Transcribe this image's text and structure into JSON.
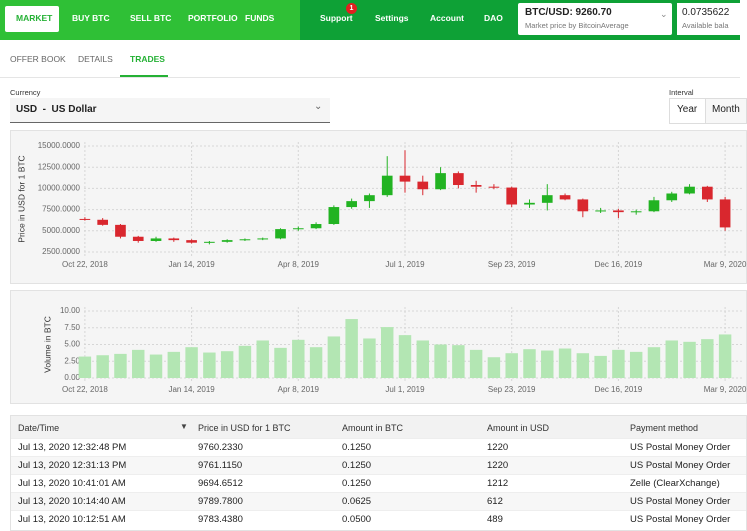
{
  "nav": {
    "items": [
      "MARKET",
      "BUY BTC",
      "SELL BTC",
      "PORTFOLIO",
      "FUNDS",
      "Support",
      "Settings",
      "Account",
      "DAO"
    ],
    "support_badge": "1",
    "price_ticker": "BTC/USD: 9260.70",
    "price_source": "Market price by BitcoinAverage",
    "balance": "0.0735622",
    "balance_label": "Available bala"
  },
  "tabs": [
    "OFFER BOOK",
    "DETAILS",
    "TRADES"
  ],
  "currency": {
    "label": "Currency",
    "value": "USD  -  US Dollar"
  },
  "interval": {
    "label": "Interval",
    "options": [
      "Year",
      "Month"
    ]
  },
  "chart_data": [
    {
      "type": "candlestick",
      "ylabel": "Price in USD for 1 BTC",
      "x": [
        "2018-10-22",
        "2018-11-05",
        "2018-11-19",
        "2018-12-03",
        "2018-12-17",
        "2018-12-31",
        "2019-01-14",
        "2019-01-28",
        "2019-02-11",
        "2019-02-25",
        "2019-03-11",
        "2019-03-25",
        "2019-04-08",
        "2019-04-22",
        "2019-05-06",
        "2019-05-20",
        "2019-06-03",
        "2019-06-17",
        "2019-07-01",
        "2019-07-15",
        "2019-07-29",
        "2019-08-12",
        "2019-08-26",
        "2019-09-09",
        "2019-09-23",
        "2019-10-07",
        "2019-10-21",
        "2019-11-04",
        "2019-11-18",
        "2019-12-02",
        "2019-12-16",
        "2019-12-30",
        "2020-01-13",
        "2020-01-27",
        "2020-02-10",
        "2020-02-24",
        "2020-03-09"
      ],
      "open": [
        6400,
        6300,
        5700,
        4300,
        3800,
        4100,
        3900,
        3600,
        3700,
        3900,
        4000,
        4100,
        5200,
        5300,
        5800,
        7800,
        8500,
        9200,
        11500,
        10800,
        9900,
        11800,
        10400,
        10200,
        10100,
        8100,
        8300,
        9200,
        8700,
        7300,
        7400,
        7200,
        7300,
        8600,
        9400,
        10200,
        8700
      ],
      "high": [
        6600,
        6500,
        5800,
        4400,
        4300,
        4200,
        4000,
        3800,
        4000,
        4100,
        4200,
        5300,
        5500,
        6000,
        8000,
        8800,
        9400,
        13800,
        14500,
        11500,
        12500,
        12000,
        10900,
        10500,
        10200,
        8700,
        10500,
        9400,
        8800,
        7700,
        7600,
        7500,
        9000,
        9600,
        10500,
        10300,
        9000
      ],
      "low": [
        6200,
        5600,
        4100,
        3600,
        3700,
        3700,
        3500,
        3400,
        3600,
        3800,
        3900,
        4000,
        5000,
        5200,
        5700,
        7600,
        7700,
        9000,
        9500,
        9200,
        9800,
        10000,
        9500,
        9900,
        7800,
        7700,
        7400,
        8600,
        6600,
        7100,
        6500,
        6900,
        7200,
        8400,
        9300,
        8400,
        5000
      ],
      "close": [
        6300,
        5700,
        4300,
        3800,
        4100,
        3900,
        3600,
        3700,
        3900,
        4000,
        4100,
        5200,
        5300,
        5800,
        7800,
        8500,
        9200,
        11500,
        10800,
        9900,
        11800,
        10400,
        10200,
        10100,
        8100,
        8300,
        9200,
        8700,
        7300,
        7400,
        7200,
        7300,
        8600,
        9400,
        10200,
        8700,
        5400
      ],
      "up_color": "#22b322",
      "down_color": "#d9272e",
      "xlim": [
        "2018-10-15",
        "2020-03-16"
      ],
      "xticks": [
        {
          "value": "2018-10-22",
          "label": "Oct 22, 2018"
        },
        {
          "value": "2019-01-14",
          "label": "Jan 14, 2019"
        },
        {
          "value": "2019-04-08",
          "label": "Apr 8, 2019"
        },
        {
          "value": "2019-07-01",
          "label": "Jul 1, 2019"
        },
        {
          "value": "2019-09-23",
          "label": "Sep 23, 2019"
        },
        {
          "value": "2019-12-16",
          "label": "Dec 16, 2019"
        },
        {
          "value": "2020-03-09",
          "label": "Mar 9, 2020"
        }
      ],
      "ylim": [
        2500,
        15000
      ],
      "yticks": [
        {
          "value": 2500,
          "label": "2500.0000"
        },
        {
          "value": 5000,
          "label": "5000.0000"
        },
        {
          "value": 7500,
          "label": "7500.0000"
        },
        {
          "value": 10000,
          "label": "10000.0000"
        },
        {
          "value": 12500,
          "label": "12500.0000"
        },
        {
          "value": 15000,
          "label": "15000.0000"
        }
      ],
      "grid": true
    },
    {
      "type": "bar",
      "ylabel": "Volume in BTC",
      "x": [
        "2018-10-22",
        "2018-11-05",
        "2018-11-19",
        "2018-12-03",
        "2018-12-17",
        "2018-12-31",
        "2019-01-14",
        "2019-01-28",
        "2019-02-11",
        "2019-02-25",
        "2019-03-11",
        "2019-03-25",
        "2019-04-08",
        "2019-04-22",
        "2019-05-06",
        "2019-05-20",
        "2019-06-03",
        "2019-06-17",
        "2019-07-01",
        "2019-07-15",
        "2019-07-29",
        "2019-08-12",
        "2019-08-26",
        "2019-09-09",
        "2019-09-23",
        "2019-10-07",
        "2019-10-21",
        "2019-11-04",
        "2019-11-18",
        "2019-12-02",
        "2019-12-16",
        "2019-12-30",
        "2020-01-13",
        "2020-01-27",
        "2020-02-10",
        "2020-02-24",
        "2020-03-09"
      ],
      "values": [
        3.2,
        3.4,
        3.6,
        4.2,
        3.5,
        3.9,
        4.6,
        3.8,
        4.0,
        4.8,
        5.6,
        4.5,
        5.7,
        4.6,
        6.2,
        8.8,
        5.9,
        7.6,
        6.4,
        5.6,
        5.0,
        4.9,
        4.2,
        3.1,
        3.7,
        4.3,
        4.1,
        4.4,
        3.7,
        3.3,
        4.2,
        3.9,
        4.6,
        5.6,
        5.4,
        5.8,
        6.5
      ],
      "color": "#b3e6b3",
      "xlim": [
        "2018-10-15",
        "2020-03-16"
      ],
      "xticks": [
        {
          "value": "2018-10-22",
          "label": "Oct 22, 2018"
        },
        {
          "value": "2019-01-14",
          "label": "Jan 14, 2019"
        },
        {
          "value": "2019-04-08",
          "label": "Apr 8, 2019"
        },
        {
          "value": "2019-07-01",
          "label": "Jul 1, 2019"
        },
        {
          "value": "2019-09-23",
          "label": "Sep 23, 2019"
        },
        {
          "value": "2019-12-16",
          "label": "Dec 16, 2019"
        },
        {
          "value": "2020-03-09",
          "label": "Mar 9, 2020"
        }
      ],
      "ylim": [
        0,
        10
      ],
      "yticks": [
        {
          "value": 0,
          "label": "0.00"
        },
        {
          "value": 2.5,
          "label": "2.50"
        },
        {
          "value": 5,
          "label": "5.00"
        },
        {
          "value": 7.5,
          "label": "7.50"
        },
        {
          "value": 10,
          "label": "10.00"
        }
      ],
      "grid": true
    }
  ],
  "table": {
    "columns": [
      "Date/Time",
      "Price in USD for 1 BTC",
      "Amount in BTC",
      "Amount in USD",
      "Payment method"
    ],
    "rows": [
      [
        "Jul 13, 2020 12:32:48 PM",
        "9760.2330",
        "0.1250",
        "1220",
        "US Postal Money Order"
      ],
      [
        "Jul 13, 2020 12:31:13 PM",
        "9761.1150",
        "0.1250",
        "1220",
        "US Postal Money Order"
      ],
      [
        "Jul 13, 2020 10:41:01 AM",
        "9694.6512",
        "0.1250",
        "1212",
        "Zelle (ClearXchange)"
      ],
      [
        "Jul 13, 2020 10:14:40 AM",
        "9789.7800",
        "0.0625",
        "612",
        "US Postal Money Order"
      ],
      [
        "Jul 13, 2020 10:12:51 AM",
        "9783.4380",
        "0.0500",
        "489",
        "US Postal Money Order"
      ]
    ]
  }
}
